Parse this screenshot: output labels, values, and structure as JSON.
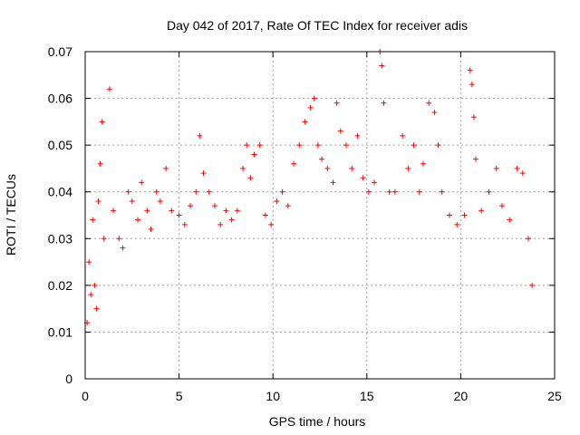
{
  "chart_data": {
    "type": "scatter",
    "title": "Day 042 of 2017, Rate Of TEC Index for receiver adis",
    "xlabel": "GPS time / hours",
    "ylabel": "ROTI / TECUs",
    "xlim": [
      0,
      25
    ],
    "ylim": [
      0,
      0.07
    ],
    "x_ticks": [
      0,
      5,
      10,
      15,
      20,
      25
    ],
    "x_tick_labels": [
      "0",
      "5",
      "10",
      "15",
      "20",
      "25"
    ],
    "y_ticks": [
      0,
      0.01,
      0.02,
      0.03,
      0.04,
      0.05,
      0.06,
      0.07
    ],
    "y_tick_labels": [
      "0",
      "0.01",
      "0.02",
      "0.03",
      "0.04",
      "0.05",
      "0.06",
      "0.07"
    ],
    "grid": true,
    "marker": "plus",
    "color": "#ff0000",
    "series": [
      {
        "points": [
          [
            0.1,
            0.012
          ],
          [
            0.2,
            0.025
          ],
          [
            0.3,
            0.018
          ],
          [
            0.4,
            0.034
          ],
          [
            0.5,
            0.02
          ],
          [
            0.6,
            0.015
          ],
          [
            0.7,
            0.038
          ],
          [
            0.8,
            0.046
          ],
          [
            0.9,
            0.055
          ],
          [
            1.0,
            0.03
          ],
          [
            1.3,
            0.062
          ],
          [
            1.5,
            0.036
          ],
          [
            1.8,
            0.03
          ],
          [
            2.0,
            0.028
          ],
          [
            2.3,
            0.04
          ],
          [
            2.5,
            0.038
          ],
          [
            2.8,
            0.034
          ],
          [
            3.0,
            0.042
          ],
          [
            3.3,
            0.036
          ],
          [
            3.5,
            0.032
          ],
          [
            3.8,
            0.04
          ],
          [
            4.0,
            0.038
          ],
          [
            4.3,
            0.045
          ],
          [
            4.6,
            0.036
          ],
          [
            5.0,
            0.035
          ],
          [
            5.3,
            0.033
          ],
          [
            5.6,
            0.037
          ],
          [
            5.9,
            0.04
          ],
          [
            6.1,
            0.052
          ],
          [
            6.3,
            0.044
          ],
          [
            6.6,
            0.04
          ],
          [
            6.9,
            0.037
          ],
          [
            7.2,
            0.033
          ],
          [
            7.5,
            0.036
          ],
          [
            7.8,
            0.034
          ],
          [
            8.1,
            0.036
          ],
          [
            8.4,
            0.045
          ],
          [
            8.6,
            0.05
          ],
          [
            8.8,
            0.043
          ],
          [
            9.0,
            0.048
          ],
          [
            9.3,
            0.05
          ],
          [
            9.6,
            0.035
          ],
          [
            9.9,
            0.033
          ],
          [
            10.2,
            0.038
          ],
          [
            10.5,
            0.04
          ],
          [
            10.8,
            0.037
          ],
          [
            11.1,
            0.046
          ],
          [
            11.4,
            0.05
          ],
          [
            11.7,
            0.055
          ],
          [
            12.0,
            0.058
          ],
          [
            12.2,
            0.06
          ],
          [
            12.4,
            0.05
          ],
          [
            12.6,
            0.047
          ],
          [
            12.9,
            0.045
          ],
          [
            13.2,
            0.042
          ],
          [
            13.4,
            0.059
          ],
          [
            13.6,
            0.053
          ],
          [
            13.9,
            0.05
          ],
          [
            14.2,
            0.045
          ],
          [
            14.5,
            0.052
          ],
          [
            14.8,
            0.043
          ],
          [
            15.1,
            0.04
          ],
          [
            15.4,
            0.042
          ],
          [
            15.7,
            0.07
          ],
          [
            15.8,
            0.067
          ],
          [
            15.9,
            0.059
          ],
          [
            16.2,
            0.04
          ],
          [
            16.5,
            0.04
          ],
          [
            16.9,
            0.052
          ],
          [
            17.2,
            0.045
          ],
          [
            17.5,
            0.05
          ],
          [
            17.8,
            0.04
          ],
          [
            18.0,
            0.046
          ],
          [
            18.3,
            0.059
          ],
          [
            18.6,
            0.057
          ],
          [
            18.8,
            0.05
          ],
          [
            19.0,
            0.04
          ],
          [
            19.4,
            0.035
          ],
          [
            19.8,
            0.033
          ],
          [
            20.2,
            0.035
          ],
          [
            20.5,
            0.066
          ],
          [
            20.6,
            0.063
          ],
          [
            20.7,
            0.056
          ],
          [
            20.8,
            0.047
          ],
          [
            21.1,
            0.036
          ],
          [
            21.5,
            0.04
          ],
          [
            21.9,
            0.045
          ],
          [
            22.2,
            0.037
          ],
          [
            22.6,
            0.034
          ],
          [
            23.0,
            0.045
          ],
          [
            23.3,
            0.044
          ],
          [
            23.6,
            0.03
          ],
          [
            23.8,
            0.02
          ]
        ]
      }
    ]
  }
}
